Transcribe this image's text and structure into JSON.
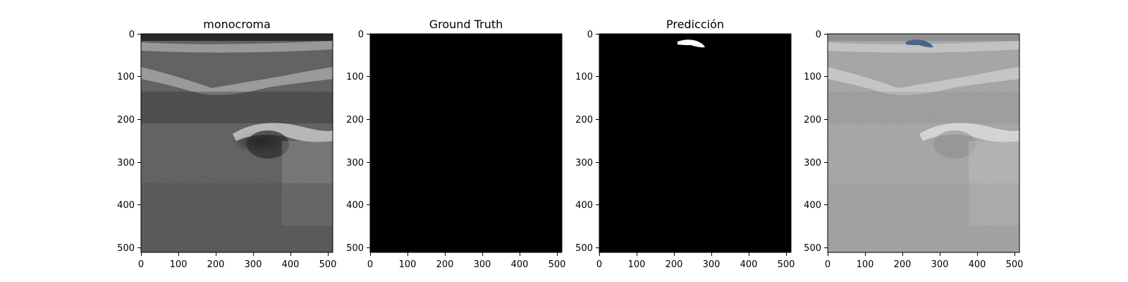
{
  "figure": {
    "panels": [
      {
        "title": "monocroma",
        "kind": "ultrasound",
        "x_ticks": [
          "0",
          "100",
          "200",
          "300",
          "400",
          "500"
        ],
        "y_ticks": [
          "0",
          "100",
          "200",
          "300",
          "400",
          "500"
        ]
      },
      {
        "title": "Ground Truth",
        "kind": "black",
        "x_ticks": [
          "0",
          "100",
          "200",
          "300",
          "400",
          "500"
        ],
        "y_ticks": [
          "0",
          "100",
          "200",
          "300",
          "400",
          "500"
        ]
      },
      {
        "title": "Predicción",
        "kind": "mask",
        "x_ticks": [
          "0",
          "100",
          "200",
          "300",
          "400",
          "500"
        ],
        "y_ticks": [
          "0",
          "100",
          "200",
          "300",
          "400",
          "500"
        ]
      },
      {
        "title": "",
        "kind": "overlay",
        "x_ticks": [
          "0",
          "100",
          "200",
          "300",
          "400",
          "500"
        ],
        "y_ticks": [
          "0",
          "100",
          "200",
          "300",
          "400",
          "500"
        ]
      }
    ],
    "colors": {
      "background": "#ffffff",
      "mask_fill": "#ffffff",
      "overlay_tint": "#4a6489",
      "ground_truth_fill": "#000000"
    }
  }
}
